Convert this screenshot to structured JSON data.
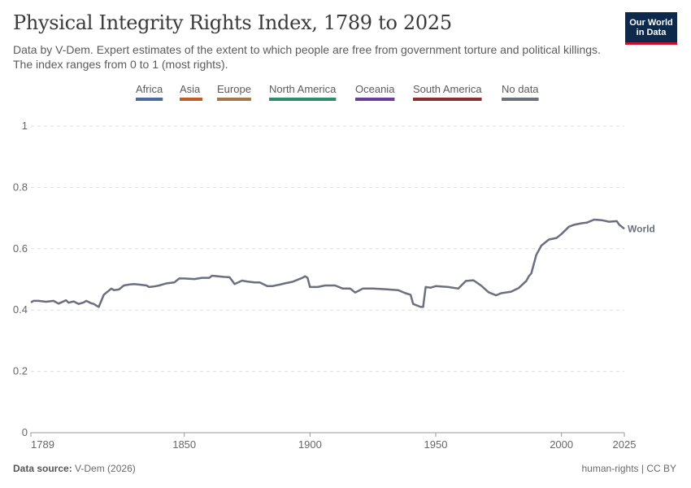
{
  "header": {
    "title": "Physical Integrity Rights Index, 1789 to 2025",
    "subtitle": "Data by V-Dem. Expert estimates of the extent to which people are free from government torture and political killings. The index ranges from 0 to 1 (most rights).",
    "logo_line1": "Our World",
    "logo_line2": "in Data"
  },
  "footer": {
    "source_label": "Data source:",
    "source_value": "V-Dem (2026)",
    "right_text": "human-rights | CC BY"
  },
  "chart_data": {
    "type": "line",
    "title": "Physical Integrity Rights Index, 1789 to 2025",
    "xlabel": "",
    "ylabel": "",
    "xlim": [
      1789,
      2025
    ],
    "ylim": [
      0,
      1
    ],
    "x_ticks": [
      1789,
      1850,
      1900,
      1950,
      2000,
      2025
    ],
    "y_ticks": [
      0,
      0.2,
      0.4,
      0.6,
      0.8,
      1
    ],
    "grid": true,
    "legend": {
      "placement": "top",
      "entries": [
        {
          "name": "Africa",
          "color": "#4c6a9c"
        },
        {
          "name": "Asia",
          "color": "#c15b29"
        },
        {
          "name": "Europe",
          "color": "#a2784b"
        },
        {
          "name": "North America",
          "color": "#2e8b6e"
        },
        {
          "name": "Oceania",
          "color": "#6a3d9a"
        },
        {
          "name": "South America",
          "color": "#8b2e2e"
        },
        {
          "name": "No data",
          "color": "#6b6f7e"
        }
      ]
    },
    "series": [
      {
        "name": "World",
        "color": "#6b6f7e",
        "x": [
          1789,
          1790,
          1792,
          1795,
          1796,
          1798,
          1800,
          1803,
          1804,
          1806,
          1808,
          1810,
          1811,
          1813,
          1814,
          1816,
          1818,
          1821,
          1822,
          1824,
          1826,
          1828,
          1830,
          1832,
          1835,
          1836,
          1838,
          1840,
          1842,
          1843,
          1846,
          1848,
          1850,
          1854,
          1857,
          1860,
          1861,
          1866,
          1868,
          1870,
          1873,
          1875,
          1878,
          1880,
          1883,
          1885,
          1888,
          1890,
          1893,
          1897,
          1898,
          1899,
          1900,
          1903,
          1906,
          1910,
          1913,
          1916,
          1918,
          1921,
          1925,
          1930,
          1935,
          1938,
          1940,
          1941,
          1944,
          1945,
          1946,
          1948,
          1950,
          1955,
          1959,
          1962,
          1965,
          1968,
          1971,
          1974,
          1976,
          1980,
          1983,
          1986,
          1987,
          1988,
          1990,
          1992,
          1995,
          1998,
          2000,
          2003,
          2005,
          2008,
          2010,
          2013,
          2016,
          2019,
          2022,
          2023,
          2025
        ],
        "values": [
          0.425,
          0.43,
          0.43,
          0.427,
          0.428,
          0.43,
          0.421,
          0.432,
          0.424,
          0.428,
          0.42,
          0.425,
          0.43,
          0.422,
          0.42,
          0.41,
          0.45,
          0.47,
          0.465,
          0.467,
          0.48,
          0.483,
          0.485,
          0.483,
          0.48,
          0.475,
          0.477,
          0.48,
          0.485,
          0.487,
          0.49,
          0.503,
          0.503,
          0.501,
          0.505,
          0.505,
          0.512,
          0.508,
          0.507,
          0.485,
          0.496,
          0.493,
          0.49,
          0.49,
          0.478,
          0.478,
          0.483,
          0.487,
          0.492,
          0.505,
          0.51,
          0.505,
          0.475,
          0.475,
          0.48,
          0.48,
          0.47,
          0.47,
          0.457,
          0.47,
          0.47,
          0.468,
          0.465,
          0.455,
          0.45,
          0.42,
          0.41,
          0.41,
          0.475,
          0.473,
          0.478,
          0.475,
          0.47,
          0.495,
          0.497,
          0.48,
          0.458,
          0.448,
          0.455,
          0.46,
          0.472,
          0.495,
          0.51,
          0.52,
          0.58,
          0.61,
          0.63,
          0.635,
          0.648,
          0.672,
          0.678,
          0.683,
          0.685,
          0.695,
          0.693,
          0.688,
          0.69,
          0.678,
          0.665
        ]
      }
    ]
  }
}
